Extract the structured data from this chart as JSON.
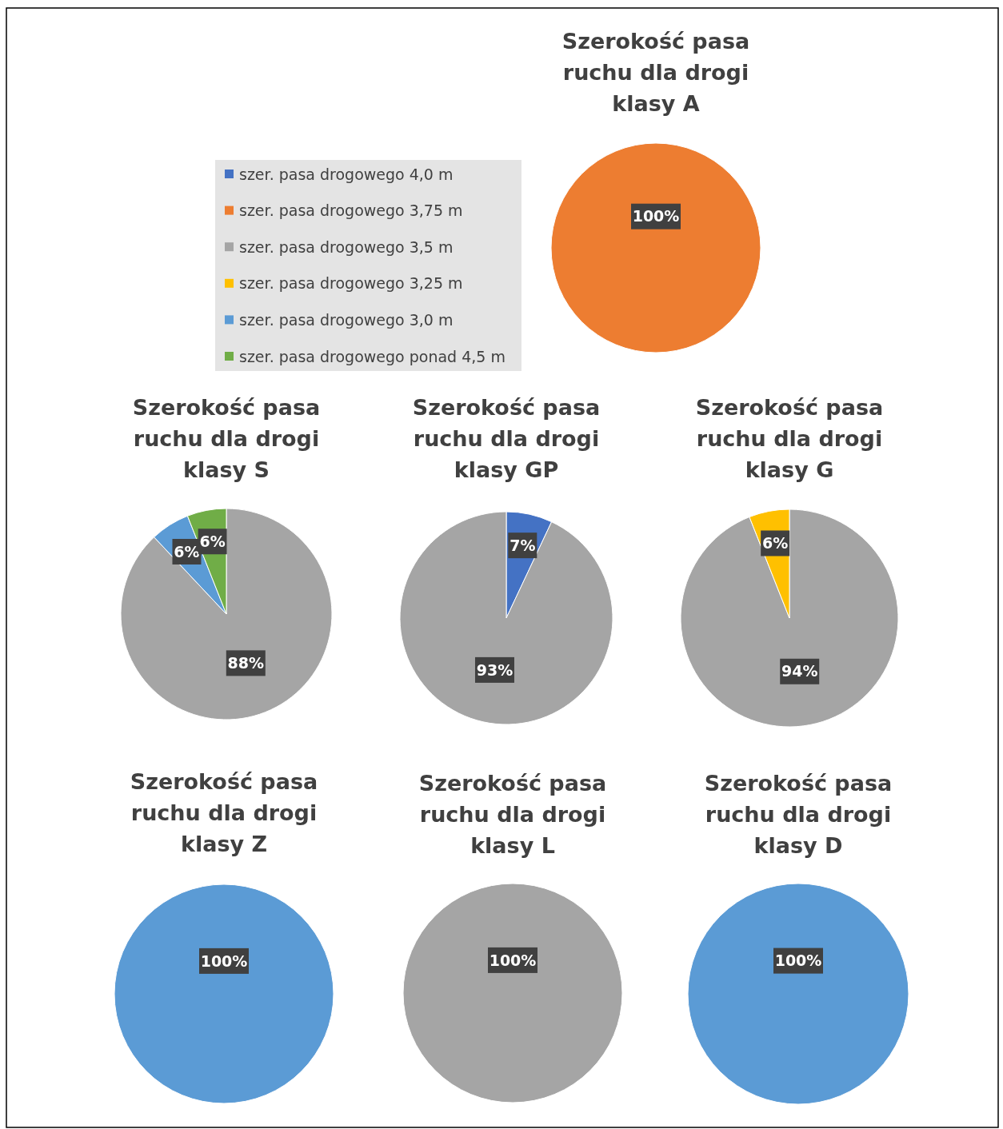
{
  "chart_data": [
    {
      "type": "pie",
      "title": "Szerokość pasa ruchu dla drogi klasy A",
      "categories": [
        "szer. pasa drogowego 4,0 m",
        "szer. pasa drogowego 3,75 m",
        "szer. pasa drogowego 3,5 m",
        "szer. pasa drogowego 3,25 m",
        "szer. pasa drogowego 3,0 m",
        "szer. pasa drogowego ponad 4,5 m"
      ],
      "values": [
        0,
        100,
        0,
        0,
        0,
        0
      ],
      "value_labels": [
        null,
        "100%",
        null,
        null,
        null,
        null
      ],
      "colors": [
        "#4472c4",
        "#ed7d31",
        "#a5a5a5",
        "#ffc000",
        "#5b9bd5",
        "#70ad47"
      ],
      "legend": "left"
    },
    {
      "type": "pie",
      "title": "Szerokość pasa ruchu dla drogi klasy S",
      "categories": [
        null,
        null,
        null
      ],
      "values": [
        88,
        6,
        6
      ],
      "value_labels": [
        "88%",
        "6%",
        "6%"
      ],
      "colors": [
        "#a5a5a5",
        "#5b9bd5",
        "#70ad47"
      ]
    },
    {
      "type": "pie",
      "title": "Szerokość pasa ruchu dla drogi klasy GP",
      "categories": [
        null,
        null
      ],
      "values": [
        7,
        93
      ],
      "value_labels": [
        "7%",
        "93%"
      ],
      "colors": [
        "#4472c4",
        "#a5a5a5"
      ]
    },
    {
      "type": "pie",
      "title": "Szerokość pasa ruchu dla drogi klasy G",
      "categories": [
        null,
        null
      ],
      "values": [
        94,
        6
      ],
      "value_labels": [
        "94%",
        "6%"
      ],
      "colors": [
        "#a5a5a5",
        "#ffc000"
      ]
    },
    {
      "type": "pie",
      "title": "Szerokość pasa ruchu dla drogi klasy Z",
      "categories": [
        null
      ],
      "values": [
        100
      ],
      "value_labels": [
        "100%"
      ],
      "colors": [
        "#5b9bd5"
      ]
    },
    {
      "type": "pie",
      "title": "Szerokość pasa ruchu dla drogi klasy L",
      "categories": [
        null
      ],
      "values": [
        100
      ],
      "value_labels": [
        "100%"
      ],
      "colors": [
        "#a5a5a5"
      ]
    },
    {
      "type": "pie",
      "title": "Szerokość pasa ruchu dla drogi klasy D",
      "categories": [
        null
      ],
      "values": [
        100
      ],
      "value_labels": [
        "100%"
      ],
      "colors": [
        "#5b9bd5"
      ]
    }
  ]
}
